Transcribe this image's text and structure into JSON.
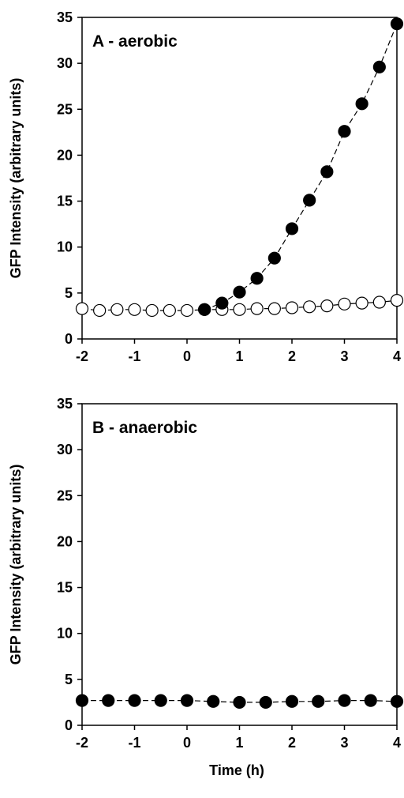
{
  "chart_data": [
    {
      "type": "scatter",
      "panel_label": "A - aerobic",
      "ylabel": "GFP Intensity (arbitrary units)",
      "xlabel": "",
      "xlim": [
        -2,
        4
      ],
      "ylim": [
        0,
        35
      ],
      "x_ticks": [
        "-2",
        "-1",
        "0",
        "1",
        "2",
        "3",
        "4"
      ],
      "y_ticks": [
        "0",
        "5",
        "10",
        "15",
        "20",
        "25",
        "30",
        "35"
      ],
      "grid": false,
      "series": [
        {
          "marker": "open-circle",
          "line": "dashed",
          "x": [
            -2,
            -1.667,
            -1.333,
            -1,
            -0.667,
            -0.333,
            0,
            0.333,
            0.667,
            1,
            1.333,
            1.667,
            2,
            2.333,
            2.667,
            3,
            3.333,
            3.667,
            4
          ],
          "y": [
            3.3,
            3.1,
            3.2,
            3.2,
            3.1,
            3.1,
            3.1,
            3.2,
            3.2,
            3.2,
            3.3,
            3.3,
            3.4,
            3.5,
            3.6,
            3.8,
            3.9,
            4.0,
            4.2
          ]
        },
        {
          "marker": "filled-circle",
          "line": "dashed",
          "x": [
            0.333,
            0.667,
            1,
            1.333,
            1.667,
            2,
            2.333,
            2.667,
            3,
            3.333,
            3.667,
            4
          ],
          "y": [
            3.2,
            3.9,
            5.1,
            6.6,
            8.8,
            12.0,
            15.1,
            18.2,
            22.6,
            25.6,
            29.6,
            34.3
          ]
        }
      ]
    },
    {
      "type": "scatter",
      "panel_label": "B - anaerobic",
      "ylabel": "GFP Intensity (arbitrary units)",
      "xlabel": "Time (h)",
      "xlim": [
        -2,
        4
      ],
      "ylim": [
        0,
        35
      ],
      "x_ticks": [
        "-2",
        "-1",
        "0",
        "1",
        "2",
        "3",
        "4"
      ],
      "y_ticks": [
        "0",
        "5",
        "10",
        "15",
        "20",
        "25",
        "30",
        "35"
      ],
      "grid": false,
      "series": [
        {
          "marker": "filled-circle",
          "line": "dashed",
          "x": [
            -2,
            -1.5,
            -1,
            -0.5,
            0,
            0.5,
            1,
            1.5,
            2,
            2.5,
            3,
            3.5,
            4
          ],
          "y": [
            2.7,
            2.7,
            2.7,
            2.7,
            2.7,
            2.6,
            2.5,
            2.5,
            2.6,
            2.6,
            2.7,
            2.7,
            2.6
          ]
        }
      ]
    }
  ]
}
